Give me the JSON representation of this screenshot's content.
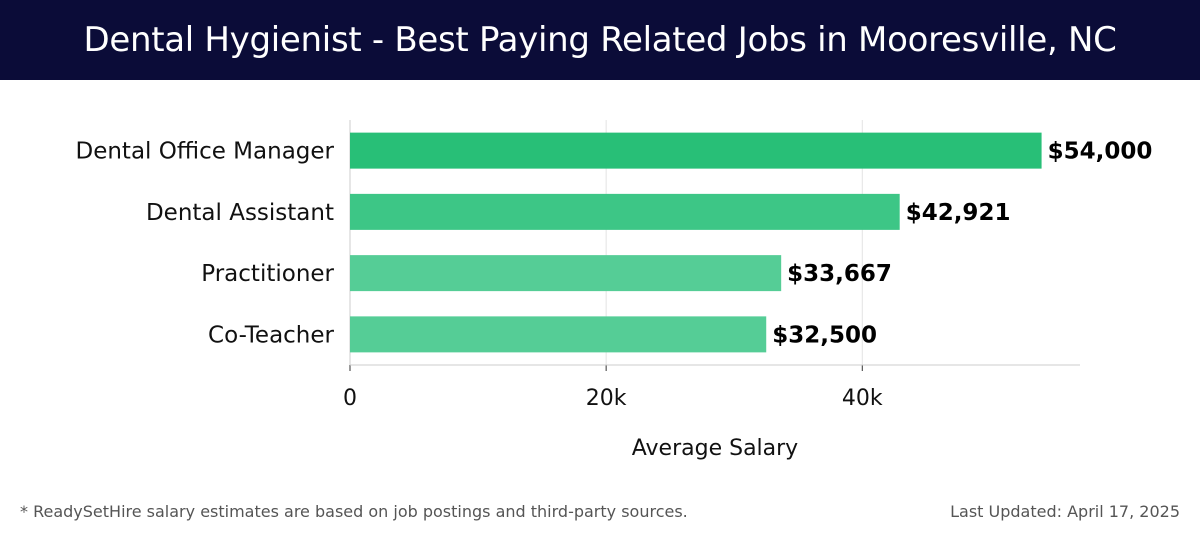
{
  "header": {
    "title": "Dental Hygienist - Best Paying Related Jobs in Mooresville, NC"
  },
  "chart_data": {
    "type": "bar",
    "orientation": "horizontal",
    "categories": [
      "Dental Office Manager",
      "Dental Assistant",
      "Practitioner",
      "Co-Teacher"
    ],
    "values": [
      54000,
      42921,
      33667,
      32500
    ],
    "value_labels": [
      "$54,000",
      "$42,921",
      "$33,667",
      "$32,500"
    ],
    "bar_colors": [
      "#28bf77",
      "#3dc686",
      "#55cd96",
      "#55cd96"
    ],
    "xlabel": "Average Salary",
    "ylabel": "",
    "xlim": [
      0,
      57000
    ],
    "xticks": [
      0,
      20000,
      40000
    ],
    "xtick_labels": [
      "0",
      "20k",
      "40k"
    ],
    "grid": true
  },
  "footer": {
    "note": "* ReadySetHire salary estimates are based on job postings and third-party sources.",
    "updated": "Last Updated: April 17, 2025"
  }
}
